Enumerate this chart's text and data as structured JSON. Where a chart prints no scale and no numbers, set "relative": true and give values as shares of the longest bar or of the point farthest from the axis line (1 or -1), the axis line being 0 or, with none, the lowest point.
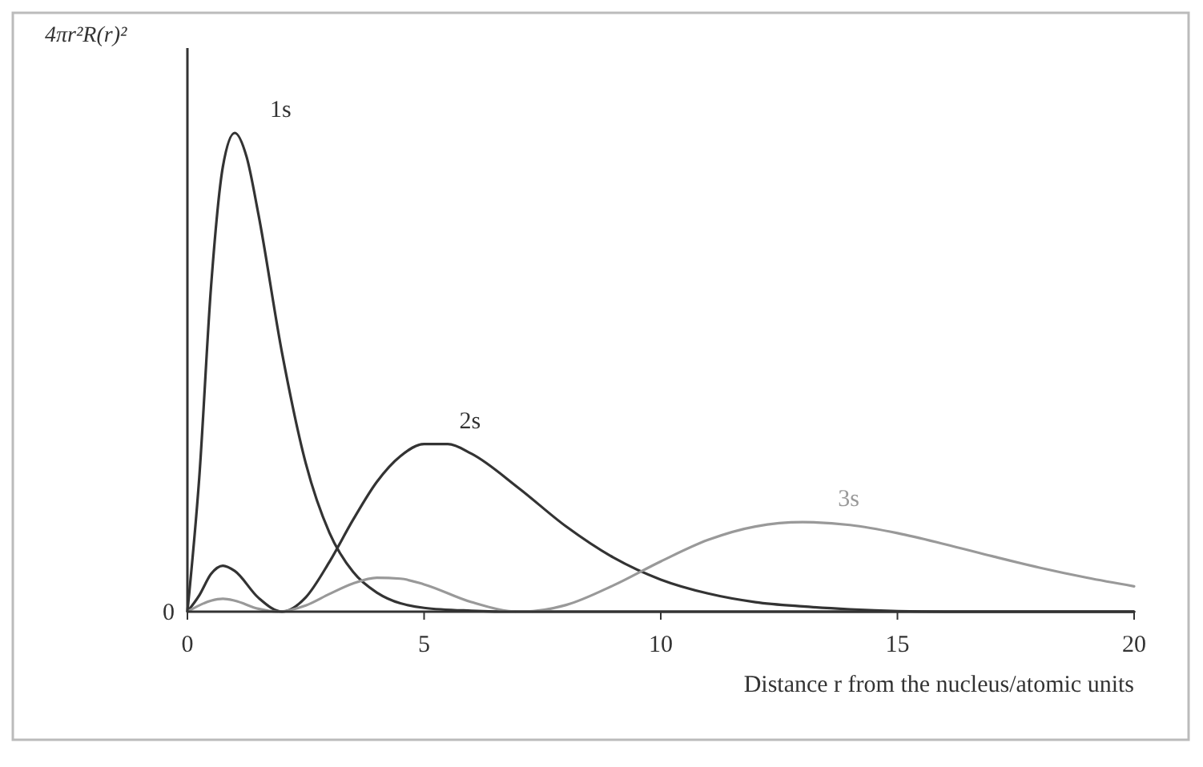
{
  "chart_data": {
    "type": "line",
    "relative": true,
    "ylabel": "4πr²R(r)²",
    "xlabel": "Distance r from the nucleus/atomic units",
    "xlim": [
      0,
      20
    ],
    "xticks": [
      0,
      5,
      10,
      15,
      20
    ],
    "annotations": [
      "0"
    ],
    "marker": "none",
    "line_style": "solid",
    "grid": false,
    "series": [
      {
        "name": "1s",
        "color": "#333333",
        "x": [
          0,
          0.25,
          0.5,
          0.75,
          1,
          1.25,
          1.5,
          2,
          2.5,
          3,
          3.5,
          4,
          5,
          6,
          7,
          20
        ],
        "values": [
          0,
          0.28,
          0.68,
          0.93,
          1,
          0.95,
          0.83,
          0.54,
          0.31,
          0.165,
          0.083,
          0.04,
          0.008,
          0.002,
          0,
          0
        ]
      },
      {
        "name": "2s",
        "color": "#333333",
        "x": [
          0,
          0.25,
          0.5,
          0.75,
          1,
          1.5,
          2,
          2.5,
          3,
          3.5,
          4,
          4.5,
          5,
          5.5,
          6,
          7,
          8,
          9,
          10,
          11,
          12,
          13,
          14,
          16,
          20
        ],
        "values": [
          0,
          0.034,
          0.079,
          0.096,
          0.085,
          0.029,
          0,
          0.03,
          0.104,
          0.192,
          0.271,
          0.325,
          0.35,
          0.35,
          0.33,
          0.258,
          0.178,
          0.113,
          0.067,
          0.038,
          0.02,
          0.011,
          0.005,
          0,
          0
        ]
      },
      {
        "name": "3s",
        "color": "#999999",
        "x": [
          0,
          0.5,
          0.75,
          1,
          1.5,
          1.9,
          2.5,
          3,
          3.5,
          4,
          4.5,
          5,
          6,
          7,
          7.1,
          8,
          9,
          10,
          11,
          12,
          13,
          14,
          15,
          16,
          17,
          18,
          19,
          20
        ],
        "values": [
          0,
          0.023,
          0.027,
          0.023,
          0.006,
          0,
          0.013,
          0.037,
          0.059,
          0.071,
          0.069,
          0.057,
          0.02,
          0,
          0,
          0.014,
          0.055,
          0.105,
          0.15,
          0.178,
          0.187,
          0.181,
          0.164,
          0.141,
          0.116,
          0.092,
          0.071,
          0.053
        ]
      }
    ]
  }
}
